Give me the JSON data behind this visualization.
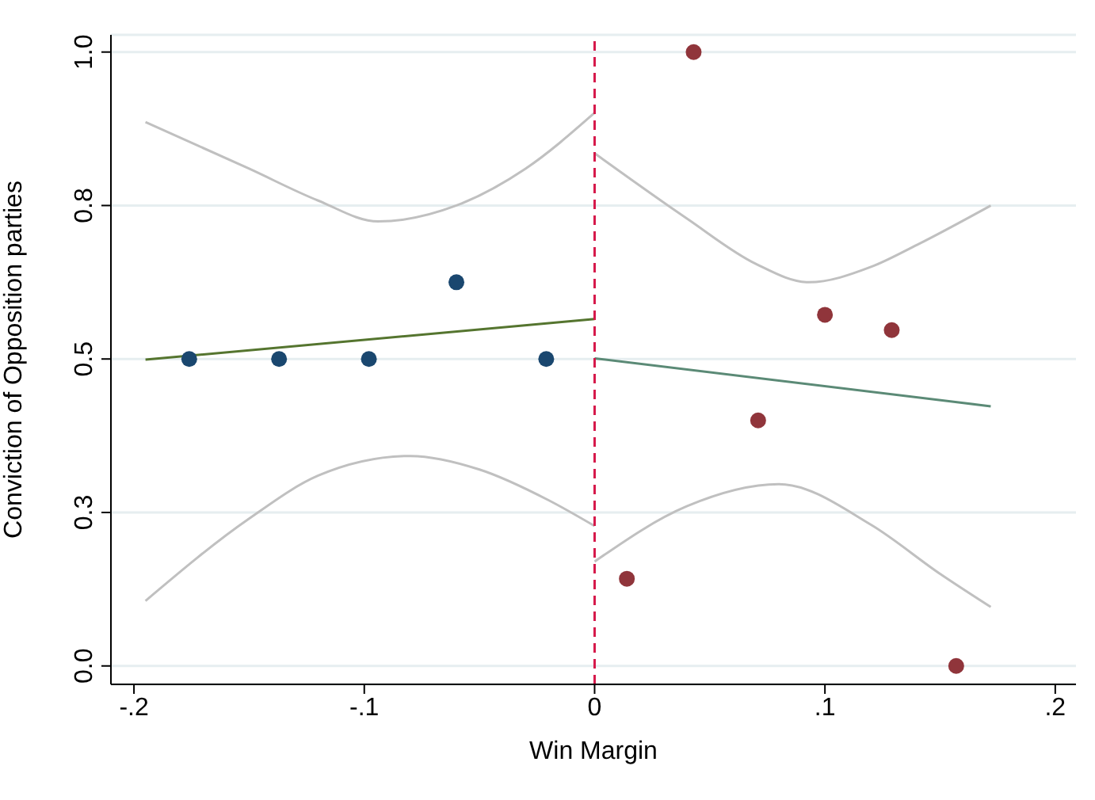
{
  "chart_data": {
    "type": "scatter",
    "xlabel": "Win Margin",
    "ylabel": "Conviction of Opposition parties",
    "xlim": [
      -0.21,
      0.209
    ],
    "ylim": [
      -0.03,
      1.028
    ],
    "xticks": [
      {
        "value": -0.2,
        "label": "-.2"
      },
      {
        "value": -0.1,
        "label": "-.1"
      },
      0,
      {
        "value": 0.1,
        "label": ".1"
      },
      {
        "value": 0.2,
        "label": ".2"
      }
    ],
    "yticks": [
      {
        "value": 0,
        "label": "0.0"
      },
      {
        "value": 0.25,
        "label": "0.3"
      },
      {
        "value": 0.5,
        "label": "0.5"
      },
      {
        "value": 0.75,
        "label": "0.8"
      },
      {
        "value": 1,
        "label": "1.0"
      }
    ],
    "grid": "y",
    "legend": false,
    "marker": "circle",
    "series": [
      {
        "type": "line",
        "color": "#c0c0c0",
        "x": [
          -0.195,
          -0.15,
          -0.12,
          -0.094,
          -0.06,
          -0.03,
          0
        ],
        "values": [
          0.886,
          0.81,
          0.758,
          0.724,
          0.75,
          0.81,
          0.901
        ],
        "marker": "none"
      },
      {
        "type": "line",
        "color": "#c0c0c0",
        "x": [
          -0.195,
          -0.15,
          -0.12,
          -0.08,
          -0.05,
          -0.02,
          0
        ],
        "values": [
          0.106,
          0.24,
          0.31,
          0.342,
          0.32,
          0.27,
          0.228
        ],
        "marker": "none"
      },
      {
        "type": "line",
        "color": "#c0c0c0",
        "x": [
          0,
          0.04,
          0.07,
          0.093,
          0.12,
          0.14,
          0.172
        ],
        "values": [
          0.835,
          0.729,
          0.655,
          0.625,
          0.65,
          0.686,
          0.75
        ],
        "marker": "none"
      },
      {
        "type": "line",
        "color": "#c0c0c0",
        "x": [
          0,
          0.04,
          0.08,
          0.12,
          0.15,
          0.172
        ],
        "values": [
          0.17,
          0.26,
          0.296,
          0.23,
          0.15,
          0.096
        ],
        "marker": "none"
      },
      {
        "type": "line",
        "color": "#55752f",
        "x": [
          -0.195,
          0
        ],
        "values": [
          0.499,
          0.565
        ],
        "marker": "none",
        "line_style": "solid"
      },
      {
        "type": "line",
        "color": "#5b8a76",
        "x": [
          0,
          0.172
        ],
        "values": [
          0.501,
          0.423
        ],
        "marker": "none",
        "line_style": "solid"
      },
      {
        "color": "#1a476f",
        "x": [
          -0.176,
          -0.137,
          -0.098,
          -0.06,
          -0.021
        ],
        "values": [
          0.5,
          0.5,
          0.5,
          0.625,
          0.5
        ]
      },
      {
        "color": "#90353b",
        "x": [
          0.014,
          0.043,
          0.071,
          0.1,
          0.129,
          0.157
        ],
        "values": [
          0.142,
          1.0,
          0.4,
          0.572,
          0.547,
          0
        ]
      }
    ],
    "ref_lines": [
      {
        "axis": "x",
        "value": 0,
        "color": "#d6184a",
        "line_style": "dashed"
      }
    ]
  }
}
